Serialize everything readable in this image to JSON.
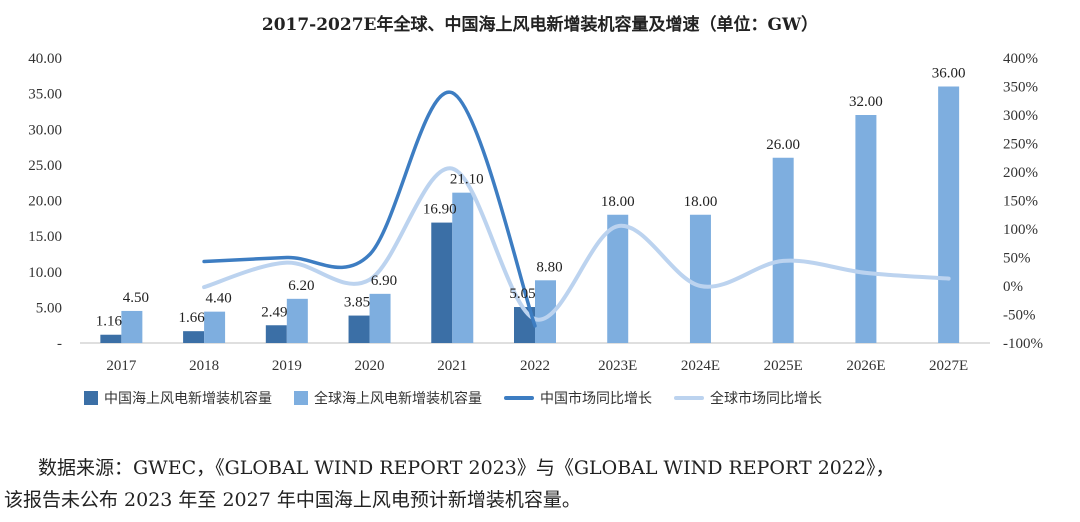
{
  "title": "2017-2027E年全球、中国海上风电新增装机容量及增速（单位：GW）",
  "chart_data": {
    "type": "bar",
    "title": "2017-2027E年全球、中国海上风电新增装机容量及增速（单位：GW）",
    "categories": [
      "2017",
      "2018",
      "2019",
      "2020",
      "2021",
      "2022",
      "2023E",
      "2024E",
      "2025E",
      "2026E",
      "2027E"
    ],
    "y_left": {
      "ylim": [
        0,
        40
      ],
      "ticks": [
        "-",
        "5.00",
        "10.00",
        "15.00",
        "20.00",
        "25.00",
        "30.00",
        "35.00",
        "40.00"
      ]
    },
    "y_right": {
      "ylim": [
        -100,
        400
      ],
      "ticks": [
        "-100%",
        "-50%",
        "0%",
        "50%",
        "100%",
        "150%",
        "200%",
        "250%",
        "300%",
        "350%",
        "400%"
      ]
    },
    "series": [
      {
        "name": "中国海上风电新增装机容量",
        "kind": "bar",
        "axis": "left",
        "color": "#3b6fa6",
        "values": [
          1.16,
          1.66,
          2.49,
          3.85,
          16.9,
          5.05,
          null,
          null,
          null,
          null,
          null
        ],
        "labels": [
          "1.16",
          "1.66",
          "2.49",
          "3.85",
          "16.90",
          "5.05",
          "",
          "",
          "",
          "",
          ""
        ]
      },
      {
        "name": "全球海上风电新增装机容量",
        "kind": "bar",
        "axis": "left",
        "color": "#7eaedf",
        "values": [
          4.5,
          4.4,
          6.2,
          6.9,
          21.1,
          8.8,
          18.0,
          18.0,
          26.0,
          32.0,
          36.0
        ],
        "labels": [
          "4.50",
          "4.40",
          "6.20",
          "6.90",
          "21.10",
          "8.80",
          "18.00",
          "18.00",
          "26.00",
          "32.00",
          "36.00"
        ]
      },
      {
        "name": "中国市场同比增长",
        "kind": "line",
        "axis": "right",
        "color": "#3d7dc2",
        "values": [
          null,
          43,
          50,
          55,
          339,
          -70,
          null,
          null,
          null,
          null,
          null
        ]
      },
      {
        "name": "全球市场同比增长",
        "kind": "line",
        "axis": "right",
        "color": "#bcd3ef",
        "values": [
          null,
          -2,
          41,
          11,
          206,
          -58,
          105,
          0,
          44,
          23,
          13
        ]
      }
    ],
    "legend_placement": "bottom",
    "grid": false
  },
  "source": {
    "line1": "数据来源：GWEC，《GLOBAL WIND REPORT 2023》与《GLOBAL WIND REPORT 2022》，",
    "line2": "该报告未公布 2023 年至 2027 年中国海上风电预计新增装机容量。"
  }
}
